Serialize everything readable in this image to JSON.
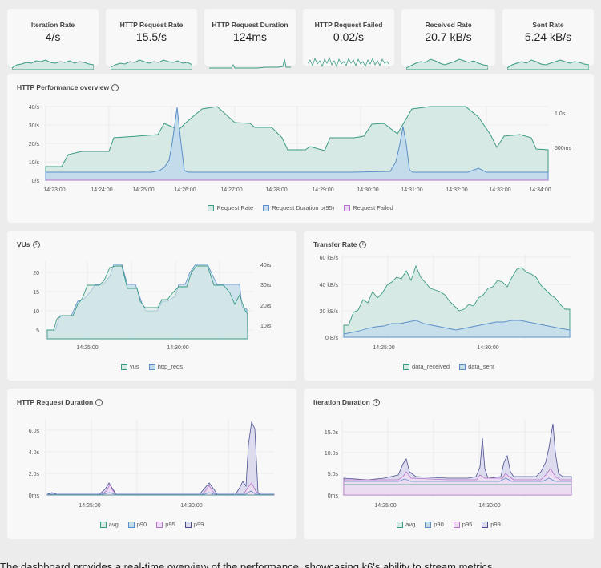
{
  "stats": [
    {
      "title": "Iteration Rate",
      "value": "4/s"
    },
    {
      "title": "HTTP Request Rate",
      "value": "15.5/s"
    },
    {
      "title": "HTTP Request Duration",
      "value": "124ms"
    },
    {
      "title": "HTTP Request Failed",
      "value": "0.02/s"
    },
    {
      "title": "Received Rate",
      "value": "20.7 kB/s"
    },
    {
      "title": "Sent Rate",
      "value": "5.24 kB/s"
    }
  ],
  "colors": {
    "green": "#3c9a84",
    "green_fill": "#d6e9e4",
    "blue": "#5b8fc9",
    "blue_fill": "#c3dceb",
    "purple": "#b573c9",
    "navy": "#4a4f8f"
  },
  "overview": {
    "title": "HTTP Performance overview",
    "y_ticks": [
      "40/s",
      "30/s",
      "20/s",
      "10/s",
      "0/s"
    ],
    "y2_ticks": [
      "1.0s",
      "500ms"
    ],
    "x_ticks": [
      "14:23:00",
      "14:24:00",
      "14:25:00",
      "14:26:00",
      "14:27:00",
      "14:28:00",
      "14:29:00",
      "14:30:00",
      "14:31:00",
      "14:32:00",
      "14:33:00",
      "14:34:00"
    ],
    "legend": [
      "Request Rate",
      "Request Duration p(95)",
      "Request Failed"
    ]
  },
  "vus": {
    "title": "VUs",
    "y_ticks": [
      "20",
      "15",
      "10",
      "5"
    ],
    "y2_ticks": [
      "40/s",
      "30/s",
      "20/s",
      "10/s"
    ],
    "x_ticks": [
      "14:25:00",
      "14:30:00"
    ],
    "legend": [
      "vus",
      "http_reqs"
    ]
  },
  "transfer": {
    "title": "Transfer Rate",
    "y_ticks": [
      "60 kB/s",
      "40 kB/s",
      "20 kB/s",
      "0 B/s"
    ],
    "x_ticks": [
      "14:25:00",
      "14:30:00"
    ],
    "legend": [
      "data_received",
      "data_sent"
    ]
  },
  "req_duration": {
    "title": "HTTP Request Duration",
    "y_ticks": [
      "6.0s",
      "4.0s",
      "2.0s",
      "0ms"
    ],
    "x_ticks": [
      "14:25:00",
      "14:30:00"
    ],
    "legend": [
      "avg",
      "p90",
      "p95",
      "p99"
    ]
  },
  "iter_duration": {
    "title": "Iteration Duration",
    "y_ticks": [
      "15.0s",
      "10.0s",
      "5.0s",
      "0ms"
    ],
    "x_ticks": [
      "14:25:00",
      "14:30:00"
    ],
    "legend": [
      "avg",
      "p90",
      "p95",
      "p99"
    ]
  },
  "footer": {
    "text": "The dashboard provides a real-time overview of the performance, showcasing k6's ability to stream metrics"
  }
}
